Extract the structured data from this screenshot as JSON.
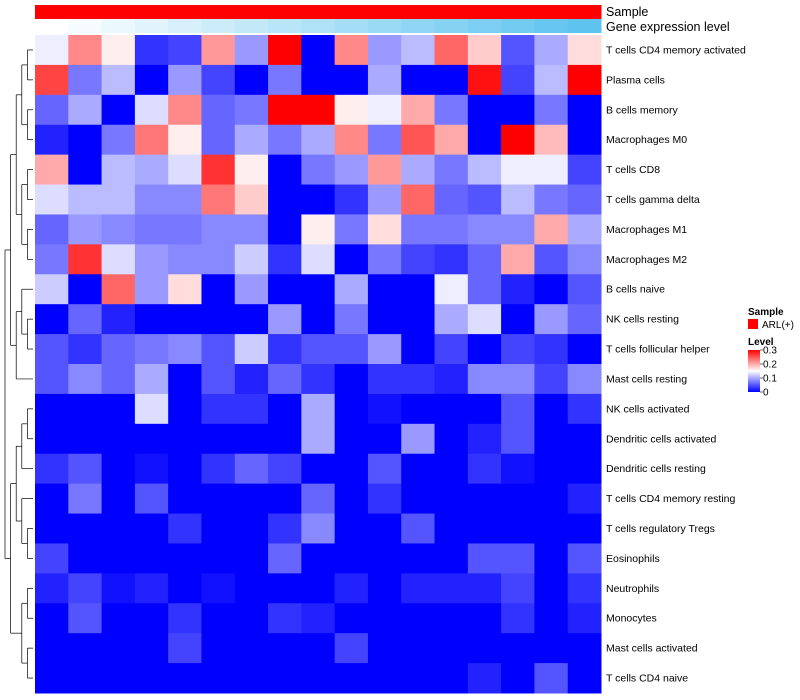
{
  "chart_data": {
    "type": "heatmap",
    "title": "",
    "annotations": [
      {
        "name": "Sample",
        "color": "#ff0000"
      },
      {
        "name": "Gene expression level",
        "colors": [
          "#ffffff",
          "#5ec3ef"
        ]
      }
    ],
    "columns": 17,
    "rows": [
      "T cells CD4 memory activated",
      "Plasma cells",
      "B cells memory",
      "Macrophages M0",
      "T cells CD8",
      "T cells gamma delta",
      "Macrophages M1",
      "Macrophages M2",
      "B cells naive",
      "NK cells resting",
      "T cells follicular helper",
      "Mast cells resting",
      "NK cells activated",
      "Dendritic cells activated",
      "Dendritic cells resting",
      "T cells CD4 memory resting",
      "T cells regulatory  Tregs",
      "Eosinophils",
      "Neutrophils",
      "Monocytes",
      "Mast cells activated",
      "T cells CD4 naive"
    ],
    "values": [
      [
        0.14,
        0.22,
        0.16,
        0.03,
        0.04,
        0.21,
        0.09,
        0.3,
        0.0,
        0.22,
        0.09,
        0.11,
        0.24,
        0.18,
        0.05,
        0.1,
        0.17
      ],
      [
        0.26,
        0.07,
        0.11,
        0.0,
        0.09,
        0.04,
        0.0,
        0.07,
        0.0,
        0.0,
        0.1,
        0.0,
        0.0,
        0.29,
        0.04,
        0.11,
        0.3
      ],
      [
        0.06,
        0.1,
        0.0,
        0.13,
        0.22,
        0.06,
        0.07,
        0.3,
        0.3,
        0.16,
        0.14,
        0.2,
        0.07,
        0.0,
        0.0,
        0.07,
        0.0
      ],
      [
        0.02,
        0.0,
        0.07,
        0.23,
        0.16,
        0.06,
        0.1,
        0.07,
        0.1,
        0.22,
        0.07,
        0.25,
        0.2,
        0.0,
        0.3,
        0.19,
        0.0
      ],
      [
        0.2,
        0.0,
        0.11,
        0.1,
        0.13,
        0.27,
        0.16,
        0.0,
        0.07,
        0.09,
        0.21,
        0.1,
        0.07,
        0.11,
        0.14,
        0.14,
        0.04
      ],
      [
        0.13,
        0.11,
        0.11,
        0.08,
        0.08,
        0.23,
        0.18,
        0.0,
        0.0,
        0.03,
        0.09,
        0.24,
        0.06,
        0.05,
        0.11,
        0.07,
        0.06
      ],
      [
        0.06,
        0.09,
        0.08,
        0.07,
        0.07,
        0.08,
        0.08,
        0.0,
        0.16,
        0.07,
        0.17,
        0.07,
        0.07,
        0.08,
        0.08,
        0.2,
        0.1
      ],
      [
        0.07,
        0.27,
        0.13,
        0.09,
        0.08,
        0.08,
        0.12,
        0.03,
        0.13,
        0.0,
        0.07,
        0.04,
        0.03,
        0.06,
        0.2,
        0.05,
        0.08
      ],
      [
        0.12,
        0.0,
        0.24,
        0.09,
        0.17,
        0.0,
        0.09,
        0.0,
        0.0,
        0.1,
        0.0,
        0.0,
        0.14,
        0.06,
        0.02,
        0.0,
        0.05
      ],
      [
        0.0,
        0.06,
        0.02,
        0.0,
        0.0,
        0.0,
        0.0,
        0.09,
        0.0,
        0.07,
        0.0,
        0.0,
        0.1,
        0.13,
        0.0,
        0.09,
        0.06
      ],
      [
        0.05,
        0.03,
        0.06,
        0.07,
        0.08,
        0.05,
        0.12,
        0.03,
        0.05,
        0.05,
        0.09,
        0.0,
        0.04,
        0.0,
        0.04,
        0.03,
        0.0
      ],
      [
        0.05,
        0.08,
        0.06,
        0.1,
        0.0,
        0.05,
        0.02,
        0.06,
        0.03,
        0.0,
        0.03,
        0.03,
        0.02,
        0.08,
        0.08,
        0.04,
        0.08
      ],
      [
        0.0,
        0.0,
        0.0,
        0.13,
        0.0,
        0.03,
        0.03,
        0.0,
        0.1,
        0.0,
        0.01,
        0.0,
        0.0,
        0.0,
        0.05,
        0.0,
        0.03
      ],
      [
        0.0,
        0.0,
        0.0,
        0.0,
        0.0,
        0.0,
        0.0,
        0.0,
        0.1,
        0.0,
        0.0,
        0.09,
        0.0,
        0.02,
        0.05,
        0.0,
        0.0
      ],
      [
        0.03,
        0.05,
        0.0,
        0.01,
        0.0,
        0.03,
        0.06,
        0.04,
        0.0,
        0.0,
        0.05,
        0.0,
        0.0,
        0.03,
        0.01,
        0.0,
        0.0
      ],
      [
        0.0,
        0.07,
        0.0,
        0.05,
        0.0,
        0.0,
        0.0,
        0.0,
        0.06,
        0.0,
        0.03,
        0.0,
        0.0,
        0.0,
        0.0,
        0.0,
        0.02
      ],
      [
        0.0,
        0.0,
        0.0,
        0.0,
        0.03,
        0.0,
        0.0,
        0.03,
        0.08,
        0.0,
        0.0,
        0.05,
        0.0,
        0.0,
        0.0,
        0.0,
        0.0
      ],
      [
        0.04,
        0.0,
        0.0,
        0.0,
        0.0,
        0.0,
        0.0,
        0.06,
        0.0,
        0.0,
        0.0,
        0.0,
        0.0,
        0.05,
        0.05,
        0.0,
        0.05
      ],
      [
        0.02,
        0.04,
        0.01,
        0.02,
        0.0,
        0.01,
        0.0,
        0.0,
        0.0,
        0.02,
        0.0,
        0.02,
        0.02,
        0.02,
        0.04,
        0.0,
        0.03
      ],
      [
        0.0,
        0.05,
        0.0,
        0.0,
        0.03,
        0.0,
        0.0,
        0.03,
        0.02,
        0.0,
        0.0,
        0.0,
        0.0,
        0.0,
        0.03,
        0.0,
        0.02
      ],
      [
        0.0,
        0.0,
        0.0,
        0.0,
        0.04,
        0.0,
        0.0,
        0.0,
        0.0,
        0.04,
        0.0,
        0.0,
        0.0,
        0.0,
        0.0,
        0.0,
        0.0
      ],
      [
        0.0,
        0.0,
        0.0,
        0.0,
        0.0,
        0.0,
        0.0,
        0.0,
        0.0,
        0.0,
        0.0,
        0.0,
        0.0,
        0.02,
        0.0,
        0.05,
        0.0
      ]
    ],
    "color_scale": {
      "min": 0,
      "mid": 0.15,
      "max": 0.3,
      "low": "#0000ff",
      "middle": "#ffffff",
      "high": "#ff0000"
    },
    "legend": {
      "sample_title": "Sample",
      "sample_entry": "ARL(+)",
      "sample_color": "#ff0000",
      "level_title": "Level",
      "ticks": [
        "0.3",
        "0.2",
        "0.1",
        "0"
      ],
      "tick_values": [
        0.3,
        0.2,
        0.1,
        0
      ]
    },
    "dendrogram": "row"
  }
}
